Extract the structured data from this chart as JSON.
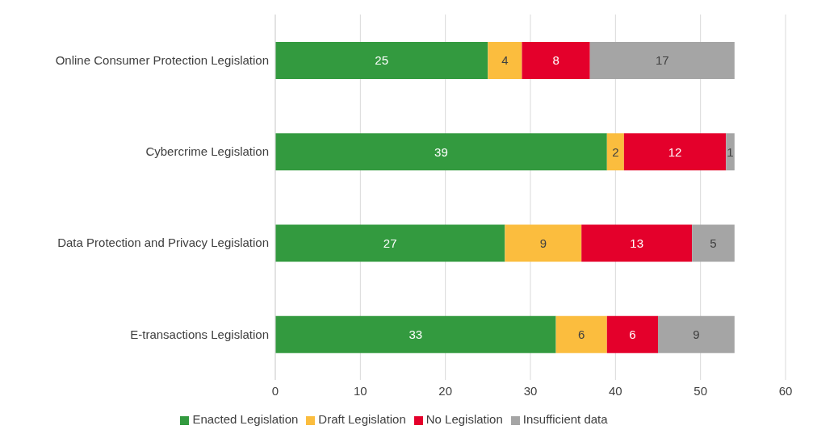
{
  "chart_data": {
    "type": "bar",
    "orientation": "horizontal",
    "stacked": true,
    "categories": [
      "Online Consumer Protection Legislation",
      "Cybercrime Legislation",
      "Data Protection and Privacy Legislation",
      "E-transactions Legislation"
    ],
    "series": [
      {
        "name": "Enacted Legislation",
        "color": "#339a3f",
        "values": [
          25,
          39,
          27,
          33
        ]
      },
      {
        "name": "Draft Legislation",
        "color": "#fbbd3e",
        "values": [
          4,
          2,
          9,
          6
        ]
      },
      {
        "name": "No Legislation",
        "color": "#e4002b",
        "values": [
          8,
          12,
          13,
          6
        ]
      },
      {
        "name": "Insufficient data",
        "color": "#a5a5a5",
        "values": [
          17,
          1,
          5,
          9
        ]
      }
    ],
    "xlim": [
      0,
      60
    ],
    "xticks": [
      0,
      10,
      20,
      30,
      40,
      50,
      60
    ],
    "grid": "x",
    "legend": "bottom",
    "data_labels": true
  }
}
